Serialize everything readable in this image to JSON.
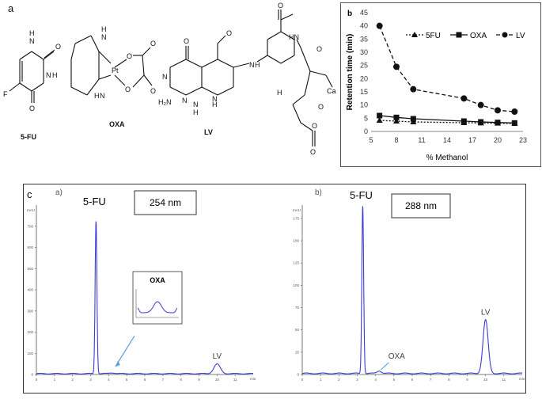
{
  "panel_a": {
    "letter": "a",
    "structures": [
      {
        "name": "5-FU",
        "atoms": [
          "N",
          "H",
          "O",
          "F",
          "N",
          "H",
          "O"
        ]
      },
      {
        "name": "OXA",
        "atoms": [
          "H",
          "N",
          "Pt",
          "N",
          "H",
          "O",
          "O",
          "O",
          "O"
        ]
      },
      {
        "name": "LV",
        "atoms": [
          "O",
          "N",
          "N",
          "H",
          "N",
          "H",
          "N",
          "O",
          "N",
          "H",
          "O",
          "O",
          "Ca",
          "H",
          "O",
          "O",
          "O"
        ]
      },
      {
        "extra_labels": [
          "H₂N",
          "H₂",
          "H₂",
          "H",
          "HN"
        ]
      }
    ]
  },
  "chart_data": [
    {
      "type": "line",
      "panel_letter": "b",
      "xlabel": "% Methanol",
      "ylabel": "Retention time (min)",
      "xlim": [
        5,
        23
      ],
      "ylim": [
        0,
        45
      ],
      "xticks": [
        "5",
        "8",
        "11",
        "14",
        "17",
        "20",
        "23"
      ],
      "yticks": [
        "0",
        "5",
        "10",
        "15",
        "20",
        "25",
        "30",
        "35",
        "40",
        "45"
      ],
      "legend_position": "top-right",
      "series": [
        {
          "name": "5FU",
          "marker": "triangle",
          "x": [
            6,
            8,
            10,
            16,
            18,
            20,
            22
          ],
          "y": [
            4.2,
            3.9,
            3.6,
            3.3,
            3.2,
            3.1,
            3.0
          ]
        },
        {
          "name": "OXA",
          "marker": "square",
          "x": [
            6,
            8,
            10,
            16,
            18,
            20,
            22
          ],
          "y": [
            6.0,
            5.3,
            4.8,
            3.9,
            3.6,
            3.4,
            3.2
          ]
        },
        {
          "name": "LV",
          "marker": "circle",
          "x": [
            6,
            8,
            10,
            16,
            18,
            20,
            22
          ],
          "y": [
            40.0,
            24.5,
            16.0,
            12.5,
            10.0,
            8.0,
            7.5
          ]
        }
      ]
    },
    {
      "type": "line",
      "panel_letter": "c",
      "sub_letter": "a)",
      "wavelength": "254 nm",
      "y_unit": "mAU",
      "xlim": [
        0,
        12
      ],
      "ylim": [
        0,
        800
      ],
      "yticks": [
        "0",
        "100",
        "200",
        "300",
        "400",
        "500",
        "600",
        "700"
      ],
      "xticks": [
        "0",
        "1",
        "2",
        "3",
        "4",
        "5",
        "6",
        "7",
        "8",
        "9",
        "10",
        "11"
      ],
      "x_unit": "min",
      "peaks": [
        {
          "name": "5-FU",
          "time": 3.3,
          "height": 720
        },
        {
          "name": "OXA",
          "time": 4.2,
          "height": 4
        },
        {
          "name": "LV",
          "time": 10.0,
          "height": 45
        }
      ],
      "inset_label": "OXA"
    },
    {
      "type": "line",
      "sub_letter": "b)",
      "wavelength": "288 nm",
      "y_unit": "mAU",
      "xlim": [
        0,
        12
      ],
      "ylim": [
        0,
        190
      ],
      "yticks": [
        "0",
        "25",
        "50",
        "75",
        "100",
        "125",
        "150",
        "175"
      ],
      "xticks": [
        "0",
        "1",
        "2",
        "3",
        "4",
        "5",
        "6",
        "7",
        "8",
        "9",
        "10",
        "11"
      ],
      "x_unit": "min",
      "peaks": [
        {
          "name": "5-FU",
          "time": 3.3,
          "height": 188
        },
        {
          "name": "OXA",
          "time": 4.2,
          "height": 3
        },
        {
          "name": "LV",
          "time": 10.0,
          "height": 60
        }
      ]
    }
  ],
  "colors": {
    "trace": "#3b3bd6",
    "arrow": "#5aa0dc"
  }
}
